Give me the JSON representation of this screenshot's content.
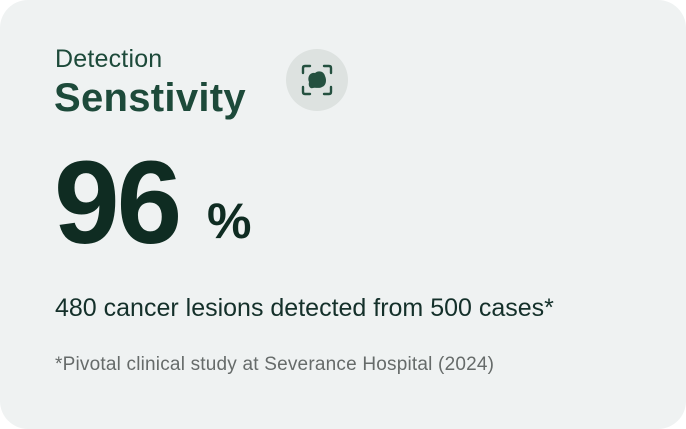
{
  "card": {
    "subtitle": "Detection",
    "title": "Senstivity",
    "icon": "lesion-detection-icon",
    "value": "96",
    "unit": "%",
    "description": "480 cancer lesions detected from 500 cases*",
    "footnote": "*Pivotal clinical study at Severance Hospital (2024)"
  },
  "colors": {
    "card_background": "#eff2f2",
    "heading": "#1d4a3a",
    "value": "#0f2c22",
    "footnote": "#666b6a",
    "icon_badge": "#dde2e0",
    "icon_fill": "#24503f"
  }
}
